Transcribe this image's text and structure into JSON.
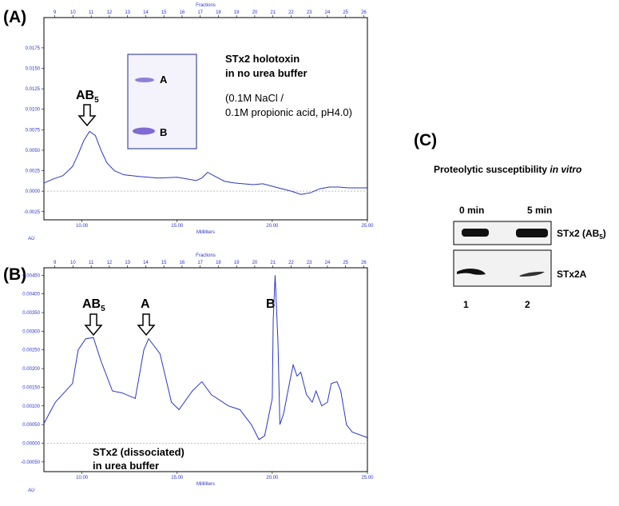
{
  "chart_data": [
    {
      "type": "line",
      "panel_label": "(A)",
      "x_label": "Milliliters",
      "x2_label": "Fractions",
      "y_label": "AU",
      "color": "#2a36c8",
      "zero_line": true,
      "xlim": [
        8,
        25
      ],
      "xticks": [
        {
          "value": 10,
          "label": "10.00"
        },
        {
          "value": 15,
          "label": "15.00"
        },
        {
          "value": 20,
          "label": "20.00"
        },
        {
          "value": 25,
          "label": "25.00"
        }
      ],
      "x2lim": [
        8.4,
        26.2
      ],
      "x2ticks": [
        9,
        10,
        11,
        12,
        13,
        14,
        15,
        16,
        17,
        18,
        19,
        20,
        21,
        22,
        23,
        24,
        25,
        26
      ],
      "ylim": [
        -0.0035,
        0.0212
      ],
      "yticks": [
        {
          "value": 0.0175,
          "label": "0.0175"
        },
        {
          "value": 0.015,
          "label": "0.0150"
        },
        {
          "value": 0.0125,
          "label": "0.0125"
        },
        {
          "value": 0.01,
          "label": "0.0100"
        },
        {
          "value": 0.0075,
          "label": "0.0075"
        },
        {
          "value": 0.005,
          "label": "0.0050"
        },
        {
          "value": 0.0025,
          "label": "0.0025"
        },
        {
          "value": 0,
          "label": "0.0000"
        },
        {
          "value": -0.0025,
          "label": "-0.0025"
        }
      ],
      "x": [
        8.0,
        8.5,
        9.0,
        9.5,
        9.8,
        10.1,
        10.4,
        10.7,
        11.0,
        11.3,
        11.7,
        12.2,
        13,
        14,
        15,
        15.5,
        16,
        16.3,
        16.6,
        17,
        17.5,
        18,
        19,
        19.5,
        20,
        20.5,
        21,
        21.5,
        22,
        22.5,
        23,
        23.5,
        24,
        25
      ],
      "values": [
        0.001,
        0.0015,
        0.0019,
        0.003,
        0.0045,
        0.0062,
        0.0073,
        0.0068,
        0.005,
        0.0035,
        0.0025,
        0.002,
        0.0018,
        0.0016,
        0.0017,
        0.0015,
        0.0013,
        0.0016,
        0.0023,
        0.0018,
        0.0012,
        0.001,
        0.0008,
        0.0009,
        0.0006,
        0.0003,
        0,
        -0.0004,
        -0.0002,
        0.0003,
        0.0005,
        0.0005,
        0.0004,
        0.0004
      ],
      "peak_labels": [
        {
          "text": "AB",
          "sub": "5"
        }
      ],
      "gel_labels": [
        "A",
        "B"
      ],
      "annotations": [
        "STx2 holotoxin",
        "in no urea buffer",
        "(0.1M NaCl /",
        "0.1M propionic acid, pH4.0)"
      ]
    },
    {
      "type": "line",
      "panel_label": "(B)",
      "x_label": "Milliliters",
      "x2_label": "Fractions",
      "y_label": "AU",
      "color": "#2a36c8",
      "zero_line": true,
      "xlim": [
        8,
        25
      ],
      "xticks": [
        {
          "value": 10,
          "label": "10.00"
        },
        {
          "value": 15,
          "label": "15.00"
        },
        {
          "value": 20,
          "label": "20.00"
        },
        {
          "value": 25,
          "label": "25.00"
        }
      ],
      "x2lim": [
        8.4,
        26.2
      ],
      "x2ticks": [
        9,
        10,
        11,
        12,
        13,
        14,
        15,
        16,
        17,
        18,
        19,
        20,
        21,
        22,
        23,
        24,
        25,
        26
      ],
      "ylim": [
        -0.00076,
        0.0047
      ],
      "yticks": [
        {
          "value": 0.0045,
          "label": "0.00450"
        },
        {
          "value": 0.004,
          "label": "0.00400"
        },
        {
          "value": 0.0035,
          "label": "0.00350"
        },
        {
          "value": 0.003,
          "label": "0.00300"
        },
        {
          "value": 0.0025,
          "label": "0.00250"
        },
        {
          "value": 0.002,
          "label": "0.00200"
        },
        {
          "value": 0.0015,
          "label": "0.00150"
        },
        {
          "value": 0.001,
          "label": "0.00100"
        },
        {
          "value": 0.0005,
          "label": "0.00050"
        },
        {
          "value": 0,
          "label": "0.00000"
        },
        {
          "value": -0.0005,
          "label": "-0.00050"
        }
      ],
      "x": [
        8.0,
        8.6,
        9.5,
        9.8,
        10.2,
        10.6,
        11.0,
        11.6,
        12.1,
        12.8,
        13.25,
        13.5,
        14.1,
        14.7,
        15.1,
        15.8,
        16.3,
        16.8,
        17.7,
        18.3,
        18.9,
        19.3,
        19.6,
        20.0,
        20.05,
        20.15,
        20.3,
        20.4,
        20.6,
        20.9,
        21.1,
        21.3,
        21.5,
        21.8,
        22.1,
        22.3,
        22.6,
        22.9,
        23.1,
        23.4,
        23.6,
        23.9,
        24.2,
        25.0
      ],
      "values": [
        0.00053,
        0.0011,
        0.0016,
        0.0025,
        0.0028,
        0.00283,
        0.0022,
        0.0014,
        0.00135,
        0.0012,
        0.0025,
        0.0028,
        0.0024,
        0.0011,
        0.0009,
        0.0014,
        0.00165,
        0.0013,
        0.001,
        0.0009,
        0.0005,
        0.0001,
        0.0002,
        0.0012,
        0.0033,
        0.0045,
        0.0027,
        0.0005,
        0.0008,
        0.0016,
        0.0021,
        0.0018,
        0.0019,
        0.0013,
        0.0011,
        0.0014,
        0.001,
        0.0011,
        0.0016,
        0.00165,
        0.0014,
        0.0005,
        0.0003,
        0.00015
      ],
      "peak_labels": [
        {
          "text": "AB",
          "sub": "5"
        },
        {
          "text": "A"
        },
        {
          "text": "B"
        }
      ],
      "annotations": [
        "STx2 (dissociated)",
        "in urea buffer"
      ]
    }
  ],
  "panel_c": {
    "panel_label": "(C)",
    "title": {
      "text": "Proteolytic susceptibility ",
      "italic": "in vitro"
    },
    "lanes": [
      "0 min",
      "5 min"
    ],
    "lane_numbers": [
      "1",
      "2"
    ],
    "rows": [
      {
        "text": "STx2 (AB",
        "sub": "5",
        "end": ")"
      },
      {
        "text": "STx2A"
      }
    ]
  }
}
